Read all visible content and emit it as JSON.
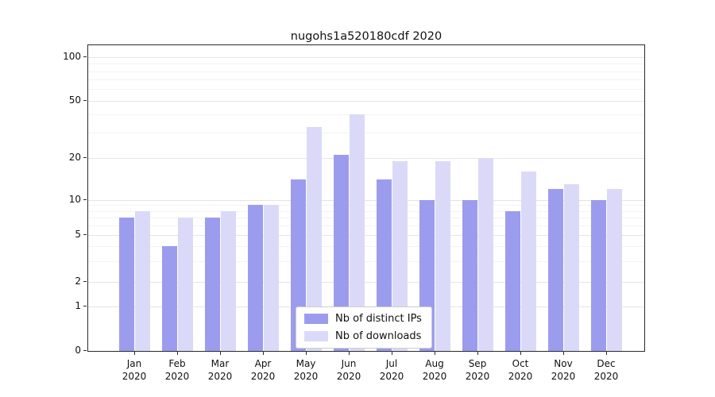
{
  "chart_data": {
    "type": "bar",
    "title": "nugohs1a520180cdf 2020",
    "categories": [
      "Jan",
      "Feb",
      "Mar",
      "Apr",
      "May",
      "Jun",
      "Jul",
      "Aug",
      "Sep",
      "Oct",
      "Nov",
      "Dec"
    ],
    "year_label": "2020",
    "series": [
      {
        "name": "Nb of distinct IPs",
        "color": "#9c9cee",
        "values": [
          7,
          4,
          7,
          9,
          14,
          21,
          14,
          10,
          10,
          8,
          12,
          10
        ]
      },
      {
        "name": "Nb of downloads",
        "color": "#dadaf8",
        "values": [
          8,
          7,
          8,
          9,
          33,
          40,
          19,
          19,
          20,
          16,
          13,
          12
        ]
      }
    ],
    "yscale": "symlog",
    "yticks": [
      0,
      1,
      2,
      5,
      10,
      20,
      50,
      100
    ],
    "minor_yticks": [
      3,
      4,
      6,
      7,
      8,
      9,
      30,
      40,
      60,
      70,
      80,
      90
    ],
    "ylim": [
      0,
      115
    ],
    "grid": "on",
    "legend_position": "lower center",
    "xlabel": "",
    "ylabel": ""
  }
}
